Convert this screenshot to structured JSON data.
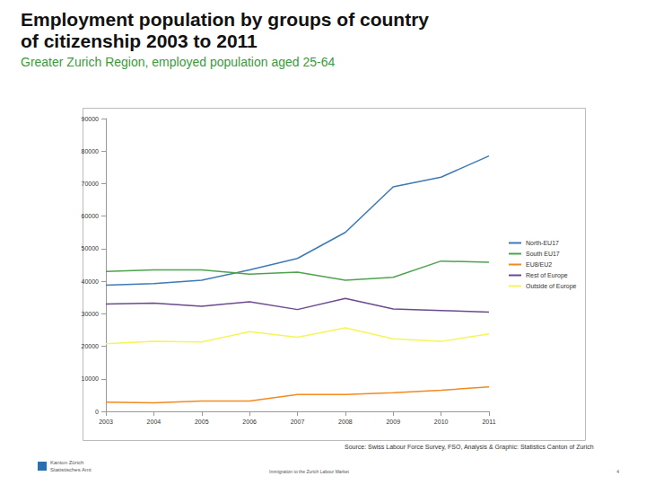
{
  "chart_data": {
    "type": "line",
    "title": "Employment population by groups of country of citizenship 2003 to 2011",
    "subtitle": "Greater Zurich Region, employed population aged 25-64",
    "annotations": [
      "Source: Swiss Labour Force Survey, FSO, Analysis & Graphic: Statistics Canton of Zurich"
    ],
    "footer": {
      "logo": [
        "Kanton Zürich",
        "Statistisches Amt"
      ],
      "center": "Immigration to the Zurich Labour Market",
      "page": "4"
    },
    "categories": [
      "2003",
      "2004",
      "2005",
      "2006",
      "2007",
      "2008",
      "2009",
      "2010",
      "2011"
    ],
    "series": [
      {
        "name": "North-EU17",
        "color": "#3d7ab5",
        "values": [
          38800,
          39300,
          40300,
          43500,
          47000,
          55000,
          69000,
          72000,
          78500
        ]
      },
      {
        "name": "South EU17",
        "color": "#4ea24e",
        "values": [
          43000,
          43500,
          43500,
          42200,
          42800,
          40300,
          41200,
          46200,
          45800
        ]
      },
      {
        "name": "EU8/EU2",
        "color": "#f28a1f",
        "values": [
          2800,
          2600,
          3200,
          3200,
          5200,
          5200,
          5700,
          6500,
          7500
        ]
      },
      {
        "name": "Rest of Europe",
        "color": "#6b4a8e",
        "values": [
          33000,
          33300,
          32300,
          33700,
          31300,
          34700,
          31500,
          31000,
          30500
        ]
      },
      {
        "name": "Outside of Europe",
        "color": "#f5f55a",
        "values": [
          20800,
          21500,
          21300,
          24500,
          22800,
          25700,
          22300,
          21500,
          23800
        ]
      }
    ],
    "ylim": [
      0,
      90000
    ],
    "yticks": [
      0,
      10000,
      20000,
      30000,
      40000,
      50000,
      60000,
      70000,
      80000,
      90000
    ],
    "grid": false,
    "legend": "right"
  }
}
